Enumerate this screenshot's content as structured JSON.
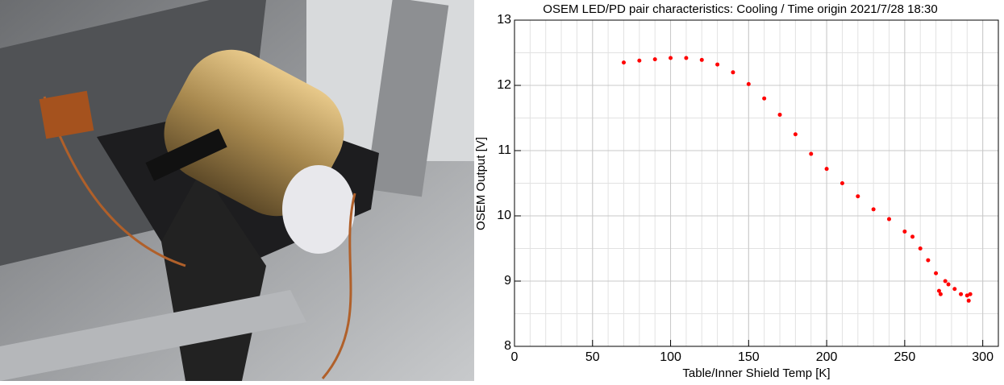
{
  "chart_data": {
    "type": "scatter",
    "title": "OSEM LED/PD pair characteristics: Cooling / Time origin 2021/7/28 18:30",
    "x_label": "Table/Inner Shield Temp [K]",
    "y_label": "OSEM Output [V]",
    "color": "#ff0000",
    "xlim": [
      0,
      310
    ],
    "ylim": [
      8,
      13
    ],
    "xticks": [
      0,
      50,
      100,
      150,
      200,
      250,
      300
    ],
    "yticks": [
      8,
      9,
      10,
      11,
      12,
      13
    ],
    "grid": true,
    "x": [
      70,
      80,
      90,
      100,
      110,
      120,
      130,
      140,
      150,
      160,
      170,
      180,
      190,
      200,
      210,
      220,
      230,
      240,
      250,
      255,
      260,
      265,
      270,
      272,
      273,
      276,
      278,
      282,
      286,
      290,
      291,
      292
    ],
    "values": [
      12.35,
      12.38,
      12.4,
      12.42,
      12.42,
      12.39,
      12.32,
      12.2,
      12.02,
      11.8,
      11.55,
      11.25,
      10.95,
      10.72,
      10.5,
      10.3,
      10.1,
      9.95,
      9.76,
      9.68,
      9.5,
      9.32,
      9.12,
      8.85,
      8.8,
      9.0,
      8.95,
      8.88,
      8.8,
      8.78,
      8.7,
      8.8
    ]
  }
}
